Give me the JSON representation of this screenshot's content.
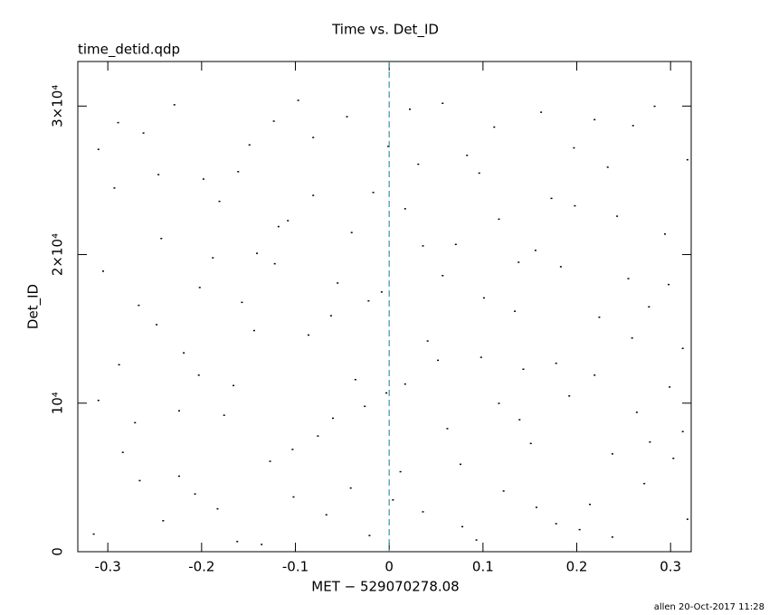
{
  "chart_data": {
    "type": "scatter",
    "title": "Time vs. Det_ID",
    "subtitle": "time_detid.qdp",
    "xlabel": "MET − 529070278.08",
    "ylabel": "Det_ID",
    "footer": "allen 20-Oct-2017 11:28",
    "color": "#000000",
    "vline_x": 0,
    "vline_color": "#1fa0b5",
    "xlim": [
      -0.332,
      0.322
    ],
    "xticks": [
      -0.3,
      -0.2,
      -0.1,
      0,
      0.1,
      0.2,
      0.3
    ],
    "ylim": [
      0,
      33000
    ],
    "yticks": [
      0,
      {
        "value": 10000,
        "label": "10⁴"
      },
      {
        "value": 20000,
        "label": "2×10⁴"
      },
      {
        "value": 30000,
        "label": "3×10⁴"
      }
    ],
    "x": [
      -0.315,
      -0.293,
      -0.271,
      -0.248,
      -0.229,
      -0.207,
      -0.188,
      -0.166,
      -0.149,
      -0.127,
      -0.108,
      -0.086,
      -0.067,
      -0.045,
      -0.026,
      -0.008,
      0.012,
      0.031,
      0.052,
      0.071,
      0.093,
      0.112,
      0.134,
      0.151,
      0.173,
      0.192,
      0.214,
      0.233,
      0.255,
      0.272,
      0.294,
      0.313,
      -0.305,
      -0.284,
      -0.262,
      -0.241,
      -0.219,
      -0.198,
      -0.176,
      -0.157,
      -0.136,
      -0.118,
      -0.097,
      -0.076,
      -0.055,
      -0.036,
      -0.017,
      0.004,
      0.022,
      0.041,
      0.062,
      0.083,
      0.101,
      0.122,
      0.143,
      0.162,
      0.183,
      0.203,
      0.224,
      0.243,
      0.264,
      0.283,
      0.303,
      0.318,
      -0.31,
      -0.288,
      -0.266,
      -0.243,
      -0.224,
      -0.202,
      -0.183,
      -0.161,
      -0.144,
      -0.122,
      -0.103,
      -0.081,
      -0.062,
      -0.04,
      -0.021,
      -0.003,
      0.017,
      0.036,
      0.057,
      0.076,
      0.098,
      0.117,
      0.139,
      0.156,
      0.178,
      0.197,
      0.219,
      0.238,
      0.26,
      0.277,
      0.299,
      0.318,
      -0.31,
      -0.289,
      -0.267,
      -0.246,
      -0.224,
      -0.203,
      -0.181,
      -0.162,
      -0.141,
      -0.123,
      -0.102,
      -0.081,
      -0.06,
      -0.041,
      -0.022,
      -0.001,
      0.017,
      0.036,
      0.057,
      0.078,
      0.096,
      0.117,
      0.138,
      0.157,
      0.178,
      0.198,
      0.219,
      0.238,
      0.259,
      0.278,
      0.298,
      0.313
    ],
    "values": [
      1200,
      24500,
      8700,
      15300,
      30100,
      3900,
      19800,
      11200,
      27400,
      6100,
      22300,
      14600,
      2500,
      29300,
      9800,
      17500,
      5400,
      26100,
      12900,
      20700,
      800,
      28600,
      16200,
      7300,
      23800,
      10500,
      3200,
      25900,
      18400,
      4600,
      21400,
      13700,
      18900,
      6700,
      28200,
      2100,
      13400,
      25100,
      9200,
      16800,
      500,
      21900,
      30400,
      7800,
      18100,
      11600,
      24200,
      3500,
      29800,
      14200,
      8300,
      26700,
      17100,
      4100,
      12300,
      29600,
      19200,
      1500,
      15800,
      22600,
      9400,
      30000,
      6300,
      26400,
      27100,
      12600,
      4800,
      21100,
      9500,
      17800,
      2900,
      25600,
      14900,
      19400,
      6900,
      27900,
      15900,
      21500,
      1100,
      10700,
      23100,
      2700,
      18600,
      5900,
      13100,
      22400,
      8900,
      20300,
      1900,
      27200,
      11900,
      6600,
      28700,
      16500,
      11100,
      2200,
      10200,
      28900,
      16600,
      25400,
      5100,
      11900,
      23600,
      700,
      20100,
      29000,
      3700,
      24000,
      9000,
      4300,
      16900,
      27300,
      11300,
      20600,
      30200,
      1700,
      25500,
      10000,
      19500,
      3000,
      12700,
      23300,
      29100,
      1000,
      14400,
      7400,
      18000,
      8100
    ]
  }
}
